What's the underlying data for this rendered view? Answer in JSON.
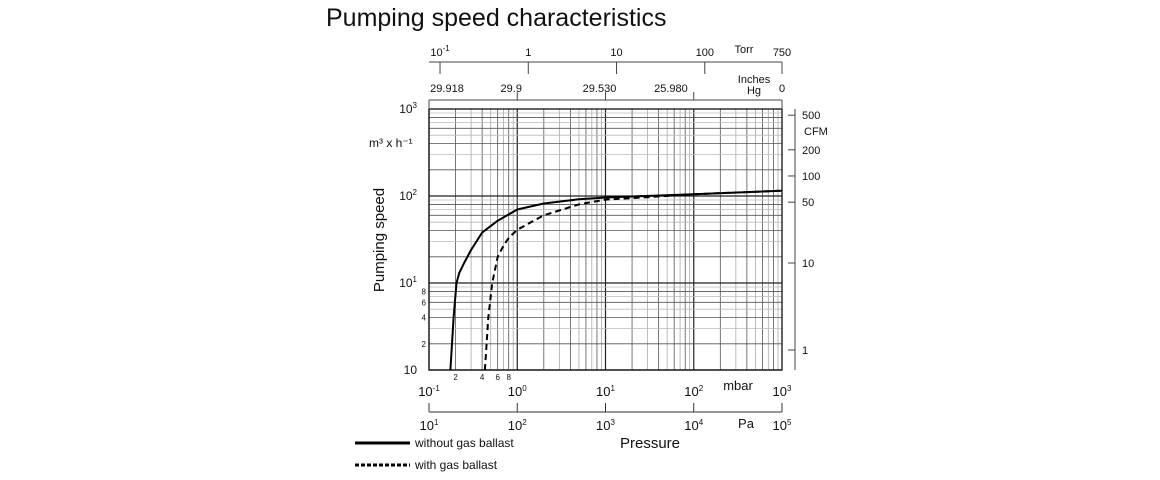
{
  "chart_data": {
    "type": "line",
    "title": "Pumping speed characteristics",
    "xlabel": "Pressure",
    "ylabel": "Pumping speed",
    "x_scale": "log",
    "y_scale": "log",
    "xlim": [
      0.1,
      1000
    ],
    "ylim": [
      1,
      1000
    ],
    "grid": true,
    "legend_position": "bottom-left",
    "y_unit": "m³ x h⁻¹",
    "y_ticks": [
      {
        "sup": "3",
        "base": "10",
        "value": 1000
      },
      {
        "sup": "2",
        "base": "10",
        "value": 100
      },
      {
        "sup": "1",
        "base": "10",
        "value": 10
      },
      {
        "sup": "",
        "base": "10",
        "value": 1
      }
    ],
    "y_minor_labels": [
      "8",
      "6",
      "4",
      "2"
    ],
    "x_minor_labels": [
      "2",
      "4",
      "6",
      "8"
    ],
    "mbar_axis": {
      "unit": "mbar",
      "ticks": [
        {
          "base": "10",
          "sup": "-1"
        },
        {
          "base": "10",
          "sup": "0"
        },
        {
          "base": "10",
          "sup": "1"
        },
        {
          "base": "10",
          "sup": "2"
        },
        {
          "base": "10",
          "sup": "3"
        }
      ]
    },
    "pa_axis": {
      "unit": "Pa",
      "ticks": [
        {
          "base": "10",
          "sup": "1"
        },
        {
          "base": "10",
          "sup": "2"
        },
        {
          "base": "10",
          "sup": "3"
        },
        {
          "base": "10",
          "sup": "4"
        },
        {
          "base": "10",
          "sup": "5"
        }
      ]
    },
    "torr_axis": {
      "unit": "Torr",
      "ticks": [
        {
          "label": "10",
          "sup": "-1",
          "torr": 0.1
        },
        {
          "label": "1",
          "sup": "",
          "torr": 1
        },
        {
          "label": "10",
          "sup": "",
          "torr": 10
        },
        {
          "label": "100",
          "sup": "",
          "torr": 100
        },
        {
          "label": "750",
          "sup": "",
          "torr": 750
        }
      ]
    },
    "inhg_axis": {
      "unit_line1": "Inches",
      "unit_line2": "Hg",
      "ticks": [
        {
          "label": "29.918",
          "mbar": 0.1
        },
        {
          "label": "29.9",
          "mbar": 1
        },
        {
          "label": "29.530",
          "mbar": 10
        },
        {
          "label": "25.980",
          "mbar": 100
        },
        {
          "label": "0",
          "mbar": 1000
        }
      ]
    },
    "cfm_axis": {
      "unit": "CFM",
      "ticks": [
        {
          "label": "500",
          "value": 500
        },
        {
          "label": "200",
          "value": 200
        },
        {
          "label": "100",
          "value": 100
        },
        {
          "label": "50",
          "value": 50
        },
        {
          "label": "10",
          "value": 10
        },
        {
          "label": "1",
          "value": 1
        }
      ]
    },
    "series": [
      {
        "name": "without gas ballast",
        "style": "solid",
        "x": [
          0.175,
          0.19,
          0.205,
          0.22,
          0.25,
          0.3,
          0.4,
          0.6,
          1,
          2,
          5,
          10,
          100,
          1000
        ],
        "y": [
          1,
          4,
          10,
          13,
          17,
          24,
          38,
          52,
          70,
          82,
          92,
          96,
          105,
          115
        ]
      },
      {
        "name": "with gas ballast",
        "style": "dashed",
        "x": [
          0.43,
          0.47,
          0.52,
          0.6,
          0.7,
          0.8,
          1,
          2,
          5,
          10,
          30,
          100,
          1000
        ],
        "y": [
          1,
          4,
          10,
          20,
          27,
          33,
          41,
          60,
          80,
          91,
          97,
          105,
          115
        ]
      }
    ]
  }
}
